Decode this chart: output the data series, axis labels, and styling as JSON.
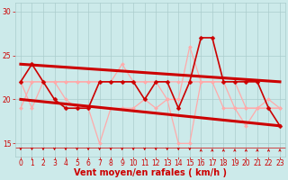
{
  "background_color": "#cceaea",
  "grid_color": "#aacccc",
  "xlabel": "Vent moyen/en rafales ( km/h )",
  "xlabel_color": "#cc0000",
  "xlabel_fontsize": 7,
  "yticks": [
    15,
    20,
    25,
    30
  ],
  "xticks": [
    0,
    1,
    2,
    3,
    4,
    5,
    6,
    7,
    8,
    9,
    10,
    11,
    12,
    13,
    14,
    15,
    16,
    17,
    18,
    19,
    20,
    21,
    22,
    23
  ],
  "xlim": [
    -0.5,
    23.5
  ],
  "ylim": [
    13.5,
    31
  ],
  "tick_color": "#cc0000",
  "tick_fontsize": 5.5,
  "series": [
    {
      "x": [
        0,
        1,
        2,
        3,
        4,
        5,
        6,
        7,
        8,
        9,
        10,
        11,
        12,
        13,
        14,
        15,
        16,
        17,
        18,
        19,
        20,
        21,
        22,
        23
      ],
      "y": [
        22,
        19,
        22,
        22,
        20,
        19,
        19,
        15,
        19,
        19,
        19,
        20,
        19,
        20,
        15,
        15,
        22,
        22,
        19,
        19,
        17,
        19,
        19,
        19
      ],
      "color": "#ffaaaa",
      "lw": 0.9,
      "marker": "D",
      "ms": 2.0,
      "zorder": 2
    },
    {
      "x": [
        0,
        1,
        2,
        3,
        4,
        5,
        6,
        7,
        8,
        9,
        10,
        11,
        12,
        13,
        14,
        15,
        16,
        17,
        18,
        19,
        20,
        21,
        22,
        23
      ],
      "y": [
        22,
        22,
        22,
        22,
        22,
        22,
        22,
        22,
        22,
        22,
        22,
        22,
        22,
        22,
        22,
        22,
        22,
        22,
        22,
        19,
        19,
        19,
        20,
        19
      ],
      "color": "#ffaaaa",
      "lw": 0.9,
      "marker": "D",
      "ms": 2.0,
      "zorder": 2
    },
    {
      "x": [
        0,
        1,
        2,
        3,
        4,
        5,
        6,
        7,
        8,
        9,
        10,
        11,
        12,
        13,
        14,
        15,
        16,
        17,
        18,
        19,
        20,
        21,
        22,
        23
      ],
      "y": [
        19,
        22,
        22,
        22,
        22,
        22,
        22,
        22,
        22,
        24,
        22,
        22,
        22,
        20,
        20,
        26,
        22,
        22,
        22,
        22,
        19,
        19,
        19,
        19
      ],
      "color": "#ffaaaa",
      "lw": 0.9,
      "marker": "D",
      "ms": 2.0,
      "zorder": 2
    },
    {
      "x": [
        0,
        1,
        2,
        3,
        4,
        5,
        6,
        7,
        8,
        9,
        10,
        11,
        12,
        13,
        14,
        15,
        16,
        17,
        18,
        19,
        20,
        21,
        22,
        23
      ],
      "y": [
        22,
        24,
        22,
        20,
        19,
        19,
        19,
        22,
        22,
        22,
        22,
        20,
        22,
        22,
        19,
        22,
        27,
        27,
        22,
        22,
        22,
        22,
        19,
        17
      ],
      "color": "#cc0000",
      "lw": 1.2,
      "marker": "D",
      "ms": 2.5,
      "zorder": 4
    },
    {
      "x": [
        0,
        23
      ],
      "y": [
        24.0,
        22.0
      ],
      "color": "#cc0000",
      "lw": 2.2,
      "marker": null,
      "ms": 0,
      "zorder": 3
    },
    {
      "x": [
        0,
        23
      ],
      "y": [
        20.0,
        17.0
      ],
      "color": "#cc0000",
      "lw": 2.2,
      "marker": null,
      "ms": 0,
      "zorder": 3
    }
  ],
  "wind_arrows_down": [
    0,
    1,
    2,
    3,
    4,
    5,
    6,
    7,
    8,
    9,
    10,
    11,
    12,
    13,
    14,
    15
  ],
  "wind_arrows_up": [
    16,
    17,
    18,
    19,
    20,
    21,
    22,
    23
  ],
  "arrow_color": "#cc0000"
}
